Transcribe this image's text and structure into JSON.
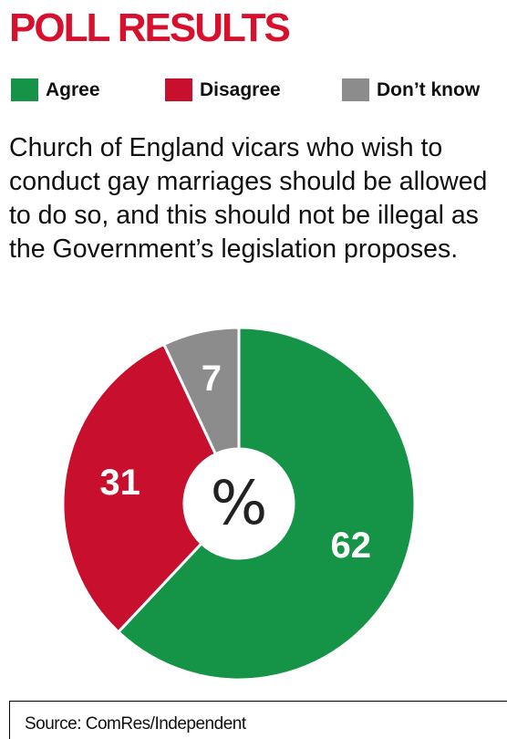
{
  "chart_data": {
    "type": "pie",
    "title": "POLL RESULTS",
    "subtitle": "Church of England vicars who wish to conduct gay marriages should be allowed to do so, and this should not be illegal as the Government’s legislation proposes.",
    "categories": [
      "Agree",
      "Disagree",
      "Don’t know"
    ],
    "values": [
      62,
      31,
      7
    ],
    "colors": [
      "#159447",
      "#c8102e",
      "#8c8c8c"
    ],
    "center_label": "%",
    "source": "Source: ComRes/Independent"
  }
}
